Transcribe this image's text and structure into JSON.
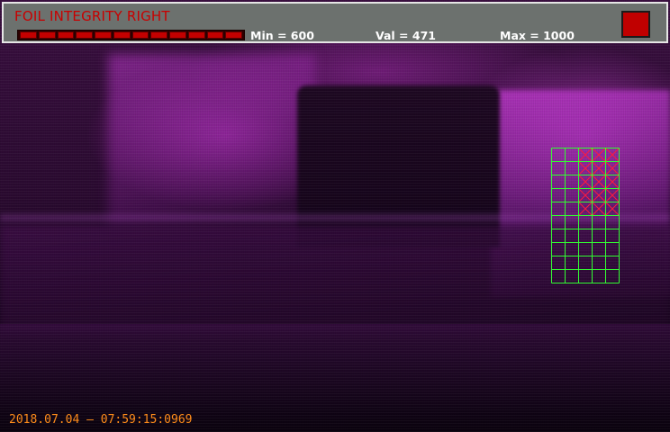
{
  "header": {
    "title": "FOIL INTEGRITY RIGHT",
    "min_label": "Min = 600",
    "val_label": "Val = 471",
    "max_label": "Max = 1000",
    "min": 600,
    "val": 471,
    "max": 1000,
    "bar_segments": 12,
    "title_color": "#c80000",
    "status_color": "#c00000"
  },
  "grid": {
    "cols": 5,
    "rows": 10,
    "line_color": "#33ff33",
    "flag_color": "#ff1a3c",
    "flagged_cells": [
      [
        0,
        2
      ],
      [
        0,
        3
      ],
      [
        0,
        4
      ],
      [
        1,
        2
      ],
      [
        1,
        3
      ],
      [
        1,
        4
      ],
      [
        2,
        2
      ],
      [
        2,
        3
      ],
      [
        2,
        4
      ],
      [
        3,
        2
      ],
      [
        3,
        3
      ],
      [
        3,
        4
      ],
      [
        4,
        2
      ],
      [
        4,
        3
      ],
      [
        4,
        4
      ]
    ]
  },
  "timestamp": "2018.07.04 — 07:59:15:0969"
}
